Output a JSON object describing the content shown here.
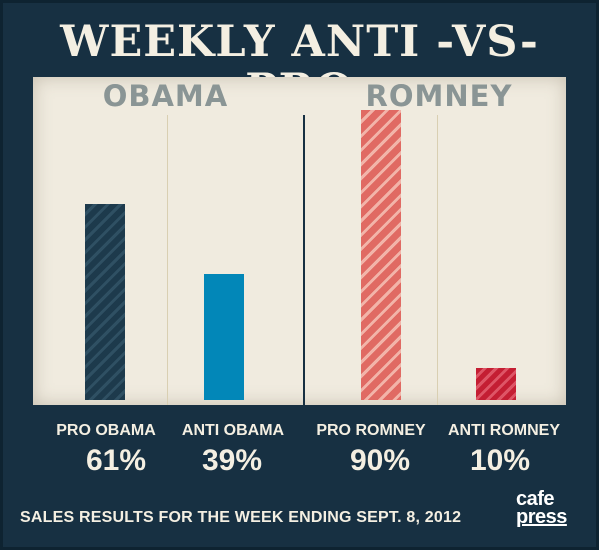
{
  "title": "WEEKLY ANTI -VS- PRO",
  "groups": [
    {
      "label": "OBAMA"
    },
    {
      "label": "ROMNEY"
    }
  ],
  "footer": "SALES RESULTS FOR THE WEEK ENDING SEPT. 8, 2012",
  "logo": {
    "line1": "cafe",
    "line2": "press"
  },
  "colors": {
    "background": "#173042",
    "panel": "#f0ebdf",
    "pro_obama": "#1d3a4c",
    "anti_obama": "#0287b8",
    "pro_romney": "#e06a63",
    "anti_romney": "#c41e33"
  },
  "chart_data": {
    "type": "bar",
    "title": "WEEKLY ANTI -VS- PRO",
    "categories": [
      "PRO OBAMA",
      "ANTI OBAMA",
      "PRO ROMNEY",
      "ANTI ROMNEY"
    ],
    "values": [
      61,
      39,
      90,
      10
    ],
    "value_labels": [
      "61%",
      "39%",
      "90%",
      "10%"
    ],
    "groups": [
      "OBAMA",
      "ROMNEY"
    ],
    "unit": "%",
    "ylim": [
      0,
      100
    ],
    "grid": false,
    "xlabel": "",
    "ylabel": ""
  }
}
